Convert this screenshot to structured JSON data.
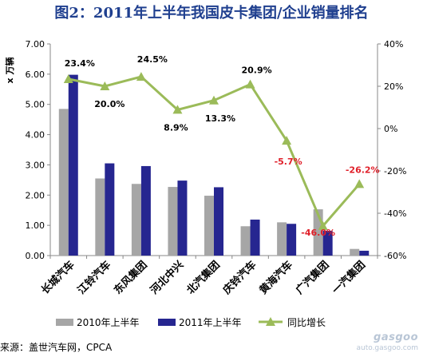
{
  "title": "图2：2011年上半年我国皮卡集团/企业销量排名",
  "source": "来源：盖世汽车网，CPCA",
  "watermark": {
    "url": "auto.gasgoo.com"
  },
  "colors": {
    "bar_2010": "#a6a6a6",
    "bar_2011": "#262690",
    "growth_line": "#9bbb59",
    "growth_negative_label": "#e0202a"
  },
  "chart_data": {
    "type": "bar",
    "title": "图2：2011年上半年我国皮卡集团/企业销量排名",
    "ylabel": "x 万辆",
    "ylim": [
      0,
      7
    ],
    "yticks": [
      "0.00",
      "1.00",
      "2.00",
      "3.00",
      "4.00",
      "5.00",
      "6.00",
      "7.00"
    ],
    "y2lim": [
      -60,
      40
    ],
    "y2ticks": [
      "-60%",
      "-40%",
      "-20%",
      "0%",
      "20%",
      "40%"
    ],
    "categories": [
      "长城汽车",
      "江铃汽车",
      "东风集团",
      "河北中兴",
      "北汽集团",
      "庆铃汽车",
      "黄海汽车",
      "广汽集团",
      "一汽集团"
    ],
    "series": [
      {
        "name": "2010年上半年",
        "type": "bar",
        "axis": "left",
        "values": [
          4.85,
          2.55,
          2.37,
          2.27,
          1.98,
          0.97,
          1.1,
          1.53,
          0.22
        ]
      },
      {
        "name": "2011年上半年",
        "type": "bar",
        "axis": "left",
        "values": [
          5.98,
          3.05,
          2.96,
          2.48,
          2.26,
          1.19,
          1.05,
          0.82,
          0.16
        ]
      },
      {
        "name": "同比增长",
        "type": "line",
        "axis": "right",
        "values": [
          23.4,
          20.0,
          24.5,
          8.9,
          13.3,
          20.9,
          -5.7,
          -46.0,
          -26.2
        ],
        "labels": [
          "23.4%",
          "20.0%",
          "24.5%",
          "8.9%",
          "13.3%",
          "20.9%",
          "-5.7%",
          "-46.0%",
          "-26.2%"
        ]
      }
    ],
    "grid": false,
    "legend": "bottom"
  }
}
